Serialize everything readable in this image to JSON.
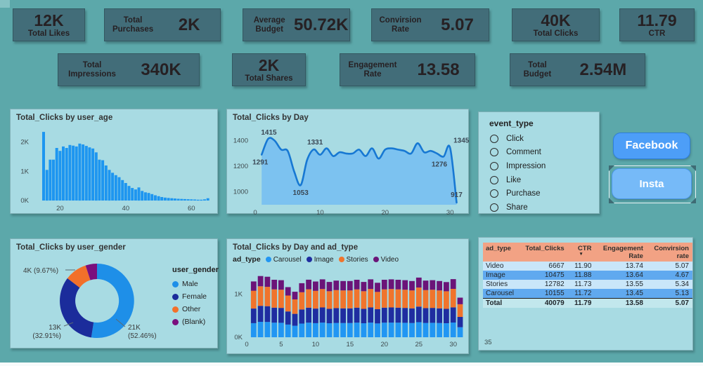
{
  "colors": {
    "background": "#5CA8AA",
    "panel": "#A8DBE3",
    "card": "#426D79",
    "facebook_button": "#4D9EF7",
    "insta_button": "#76BAF8",
    "table_header": "#F2A284",
    "table_row_light": "#C9E6F9",
    "table_row_medium": "#60A9EF"
  },
  "kpi_cards": [
    {
      "value": "12K",
      "label": "Total Likes"
    },
    {
      "label": "Total Purchases",
      "value": "2K"
    },
    {
      "label": "Average Budget",
      "value": "50.72K"
    },
    {
      "label": "Convirsion Rate",
      "value": "5.07"
    },
    {
      "value": "40K",
      "label": "Total Clicks"
    },
    {
      "value": "11.79",
      "label": "CTR"
    },
    {
      "label": "Total Impressions",
      "value": "340K"
    },
    {
      "value": "2K",
      "label": "Total Shares"
    },
    {
      "label": "Engagement Rate",
      "value": "13.58"
    },
    {
      "label": "Total Budget",
      "value": "2.54M"
    }
  ],
  "event_slicer": {
    "title": "event_type",
    "options": [
      "Click",
      "Comment",
      "Impression",
      "Like",
      "Purchase",
      "Share"
    ]
  },
  "buttons": {
    "facebook": "Facebook",
    "insta": "Insta"
  },
  "chart_data": [
    {
      "type": "bar",
      "title": "Total_Clicks by user_age",
      "xlabel": "user_age",
      "ylabel": "Total_Clicks",
      "x_start": 15,
      "values": [
        2350,
        1050,
        1400,
        1400,
        1800,
        1700,
        1850,
        1800,
        1900,
        1880,
        1850,
        1950,
        1920,
        1870,
        1820,
        1780,
        1650,
        1400,
        1380,
        1200,
        1050,
        950,
        870,
        800,
        700,
        600,
        500,
        430,
        380,
        450,
        330,
        280,
        260,
        220,
        180,
        150,
        120,
        100,
        90,
        80,
        70,
        60,
        55,
        50,
        45,
        40,
        35,
        30,
        30,
        40,
        80
      ],
      "ylim": [
        0,
        2400
      ],
      "yticks": [
        [
          0,
          "0K"
        ],
        [
          1000,
          "1K"
        ],
        [
          2000,
          "2K"
        ]
      ],
      "xticks": [
        20,
        40,
        60
      ],
      "bar_color": "#1E96F0",
      "grid": false
    },
    {
      "type": "area",
      "title": "Total_Clicks by Day",
      "xlabel": "Day",
      "ylabel": "Total_Clicks",
      "x": [
        1,
        2,
        3,
        4,
        5,
        6,
        7,
        8,
        9,
        10,
        11,
        12,
        13,
        14,
        15,
        16,
        17,
        18,
        19,
        20,
        21,
        22,
        23,
        24,
        25,
        26,
        27,
        28,
        29,
        30,
        31
      ],
      "values": [
        1291,
        1415,
        1400,
        1330,
        1320,
        1160,
        1053,
        1250,
        1331,
        1290,
        1340,
        1280,
        1310,
        1300,
        1300,
        1330,
        1280,
        1340,
        1260,
        1330,
        1340,
        1330,
        1320,
        1300,
        1380,
        1310,
        1320,
        1300,
        1276,
        1345,
        917
      ],
      "point_labels": [
        {
          "x": 1,
          "y": 1291
        },
        {
          "x": 2,
          "y": 1415
        },
        {
          "x": 7,
          "y": 1053
        },
        {
          "x": 9,
          "y": 1331
        },
        {
          "x": 29,
          "y": 1276
        },
        {
          "x": 30,
          "y": 1345
        },
        {
          "x": 31,
          "y": 917
        }
      ],
      "ylim": [
        900,
        1480
      ],
      "yticks": [
        1000,
        1200,
        1400
      ],
      "xticks": [
        0,
        10,
        20,
        30
      ],
      "line_color": "#1778D3",
      "fill_color": "#7CC2F0",
      "grid": false
    },
    {
      "type": "pie",
      "title": "Total_Clicks by user_gender",
      "legend_title": "user_gender",
      "legend_position": "right",
      "slices": [
        {
          "name": "Male",
          "value": 21000,
          "pct": 52.46,
          "label": "21K (52.46%)",
          "color": "#1E8FE8"
        },
        {
          "name": "Female",
          "value": 13000,
          "pct": 32.91,
          "label": "13K (32.91%)",
          "color": "#1B2C9B"
        },
        {
          "name": "Other",
          "value": 4000,
          "pct": 9.67,
          "label": "4K (9.67%)",
          "color": "#F2702A"
        },
        {
          "name": "(Blank)",
          "value": 2000,
          "pct": 4.96,
          "label": "",
          "color": "#7A0F7E"
        }
      ]
    },
    {
      "type": "bar",
      "stacked": true,
      "title": "Total_Clicks by Day and ad_type",
      "legend_title": "ad_type",
      "categories": [
        1,
        2,
        3,
        4,
        5,
        6,
        7,
        8,
        9,
        10,
        11,
        12,
        13,
        14,
        15,
        16,
        17,
        18,
        19,
        20,
        21,
        22,
        23,
        24,
        25,
        26,
        27,
        28,
        29,
        30,
        31
      ],
      "series": [
        {
          "name": "Carousel",
          "color": "#2196F3",
          "values": [
            327,
            358,
            354,
            337,
            334,
            293,
            266,
            316,
            337,
            326,
            339,
            324,
            331,
            329,
            329,
            337,
            324,
            339,
            319,
            337,
            339,
            337,
            334,
            329,
            349,
            331,
            334,
            329,
            323,
            340,
            232
          ]
        },
        {
          "name": "Image",
          "color": "#1F2DA0",
          "values": [
            337,
            369,
            365,
            347,
            345,
            303,
            275,
            326,
            347,
            337,
            350,
            334,
            342,
            339,
            339,
            347,
            334,
            350,
            329,
            347,
            350,
            347,
            345,
            339,
            360,
            342,
            345,
            339,
            333,
            351,
            239
          ]
        },
        {
          "name": "Stories",
          "color": "#F0742C",
          "values": [
            412,
            451,
            447,
            424,
            421,
            370,
            336,
            399,
            425,
            412,
            427,
            408,
            418,
            415,
            415,
            424,
            408,
            427,
            402,
            424,
            427,
            424,
            421,
            415,
            440,
            418,
            421,
            415,
            407,
            429,
            293
          ]
        },
        {
          "name": "Video",
          "color": "#6B1478",
          "values": [
            215,
            237,
            234,
            222,
            220,
            194,
            176,
            209,
            222,
            215,
            224,
            214,
            219,
            217,
            217,
            222,
            214,
            224,
            210,
            222,
            224,
            222,
            220,
            217,
            231,
            219,
            220,
            217,
            213,
            225,
            153
          ]
        }
      ],
      "ylim": [
        0,
        1500
      ],
      "yticks": [
        [
          0,
          "0K"
        ],
        [
          1000,
          "1K"
        ]
      ],
      "xticks": [
        0,
        5,
        10,
        15,
        20,
        25,
        30
      ],
      "grid": false
    },
    {
      "type": "table",
      "columns": [
        "ad_type",
        "Total_Clicks",
        "CTR",
        "Engagement Rate",
        "Convirsion rate"
      ],
      "sort_column": "CTR",
      "sort_direction": "desc",
      "rows": [
        [
          "Video",
          "6667",
          "11.90",
          "13.74",
          "5.07"
        ],
        [
          "Image",
          "10475",
          "11.88",
          "13.64",
          "4.67"
        ],
        [
          "Stories",
          "12782",
          "11.73",
          "13.55",
          "5.34"
        ],
        [
          "Carousel",
          "10155",
          "11.72",
          "13.45",
          "5.13"
        ]
      ],
      "total": [
        "Total",
        "40079",
        "11.79",
        "13.58",
        "5.07"
      ],
      "footnote": "35"
    }
  ]
}
